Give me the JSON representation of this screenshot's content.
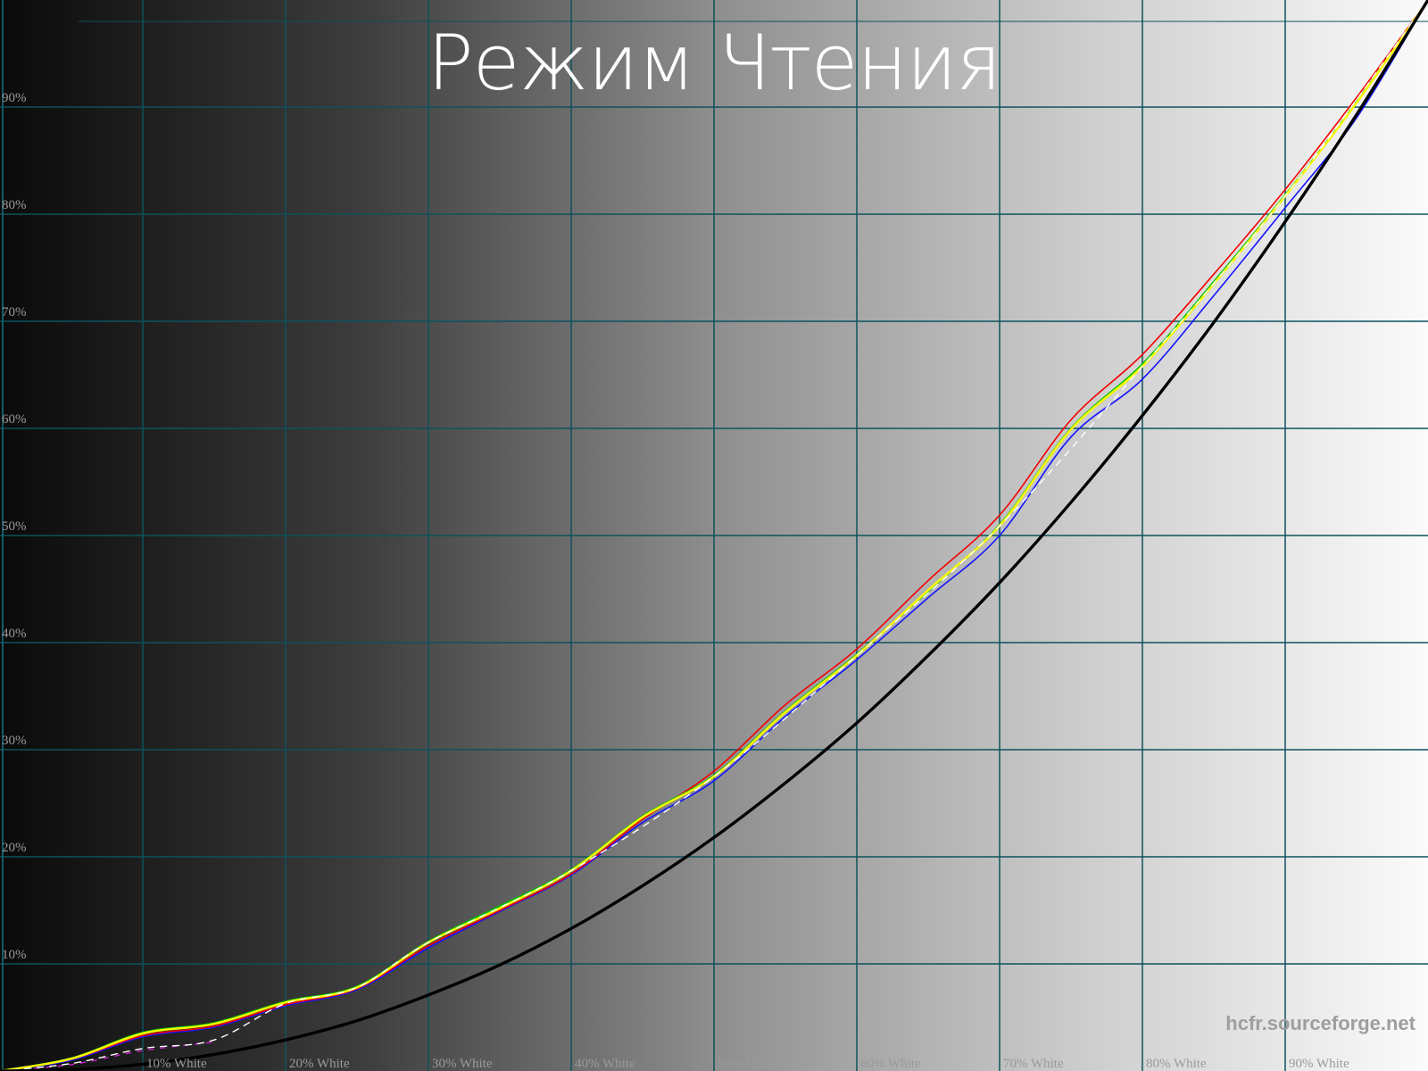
{
  "title": "Режим Чтения",
  "watermark": "hcfr.sourceforge.net",
  "colors": {
    "background_left": "#0a0a0a",
    "background_mid": "#8e8e8e",
    "background_right": "#fbfbfb",
    "grid": "#0d525c",
    "axis_border": "#14646e",
    "tick_label": "#9a9a9a",
    "title_text": "#ffffff",
    "watermark_text": "#9e9e9e"
  },
  "chart_data": {
    "type": "line",
    "title": "Режим Чтения",
    "xlabel": "",
    "ylabel": "",
    "xlim": [
      0,
      100
    ],
    "ylim": [
      0,
      100
    ],
    "grid": true,
    "legend_position": "none",
    "x_ticks": [
      {
        "value": 10,
        "label": "10% White"
      },
      {
        "value": 20,
        "label": "20% White"
      },
      {
        "value": 30,
        "label": "30% White"
      },
      {
        "value": 40,
        "label": "40% White"
      },
      {
        "value": 50,
        "label": "50% White"
      },
      {
        "value": 60,
        "label": "60% White"
      },
      {
        "value": 70,
        "label": "70% White"
      },
      {
        "value": 80,
        "label": "80% White"
      },
      {
        "value": 90,
        "label": "90% White"
      }
    ],
    "y_ticks": [
      {
        "value": 10,
        "label": "10%"
      },
      {
        "value": 20,
        "label": "20%"
      },
      {
        "value": 30,
        "label": "30%"
      },
      {
        "value": 40,
        "label": "40%"
      },
      {
        "value": 50,
        "label": "50%"
      },
      {
        "value": 60,
        "label": "60%"
      },
      {
        "value": 70,
        "label": "70%"
      },
      {
        "value": 80,
        "label": "80%"
      },
      {
        "value": 90,
        "label": "90%"
      }
    ],
    "x": [
      0,
      5,
      10,
      15,
      20,
      25,
      30,
      35,
      40,
      45,
      50,
      55,
      60,
      65,
      70,
      75,
      80,
      85,
      90,
      95,
      100
    ],
    "series": [
      {
        "name": "magenta-dashed",
        "color": "#cc22cc",
        "width": 1.4,
        "dash": "5 8",
        "x": [
          0,
          5,
          10,
          15
        ],
        "values": [
          0,
          0.6,
          1.9,
          2.7
        ]
      },
      {
        "name": "blue",
        "color": "#1414ff",
        "width": 1.6,
        "dash": null,
        "values": [
          0,
          1.0,
          3.2,
          4.1,
          6.1,
          7.6,
          11.5,
          14.9,
          18.3,
          23.2,
          27.1,
          33.1,
          38.4,
          44.2,
          50.0,
          59.2,
          64.6,
          72.4,
          80.6,
          89.0,
          100
        ]
      },
      {
        "name": "red",
        "color": "#f40000",
        "width": 1.6,
        "dash": null,
        "values": [
          0,
          1.1,
          3.3,
          4.2,
          6.2,
          7.7,
          11.7,
          15.0,
          18.4,
          23.5,
          28.0,
          34.2,
          39.4,
          45.8,
          51.9,
          60.8,
          66.9,
          74.4,
          82.3,
          90.9,
          100
        ]
      },
      {
        "name": "green",
        "color": "#00c000",
        "width": 1.9,
        "dash": null,
        "values": [
          0,
          1.2,
          3.6,
          4.5,
          6.5,
          7.9,
          12.1,
          15.4,
          18.8,
          23.8,
          27.6,
          33.6,
          38.9,
          44.8,
          51.0,
          60.0,
          66.0,
          73.7,
          81.8,
          90.5,
          100
        ]
      },
      {
        "name": "yellow-luminance",
        "color": "#f8f800",
        "width": 2.5,
        "dash": null,
        "values": [
          0,
          1.15,
          3.5,
          4.4,
          6.4,
          7.8,
          12.0,
          15.2,
          18.7,
          23.7,
          27.5,
          33.5,
          38.8,
          44.9,
          50.9,
          59.9,
          65.8,
          73.5,
          81.7,
          90.4,
          100
        ]
      },
      {
        "name": "white-dashed",
        "color": "#ffffff",
        "width": 1.4,
        "dash": "7 7",
        "x": [
          0,
          5,
          10,
          15,
          20,
          25,
          30,
          40,
          50,
          60,
          70,
          80,
          90,
          100
        ],
        "values": [
          0,
          0.7,
          2.1,
          2.9,
          6.3,
          7.8,
          12.0,
          18.7,
          27.5,
          38.8,
          50.9,
          65.8,
          81.7,
          100
        ]
      },
      {
        "name": "reference-gamma-2.2",
        "color": "#000000",
        "width": 3.4,
        "dash": null,
        "values": [
          0,
          0.14,
          0.63,
          1.55,
          2.9,
          4.7,
          7.1,
          9.9,
          13.3,
          17.3,
          21.8,
          26.9,
          32.5,
          38.8,
          45.6,
          53.1,
          61.2,
          69.9,
          79.3,
          89.3,
          100
        ]
      }
    ],
    "borders": {
      "left": true,
      "top": true
    }
  }
}
